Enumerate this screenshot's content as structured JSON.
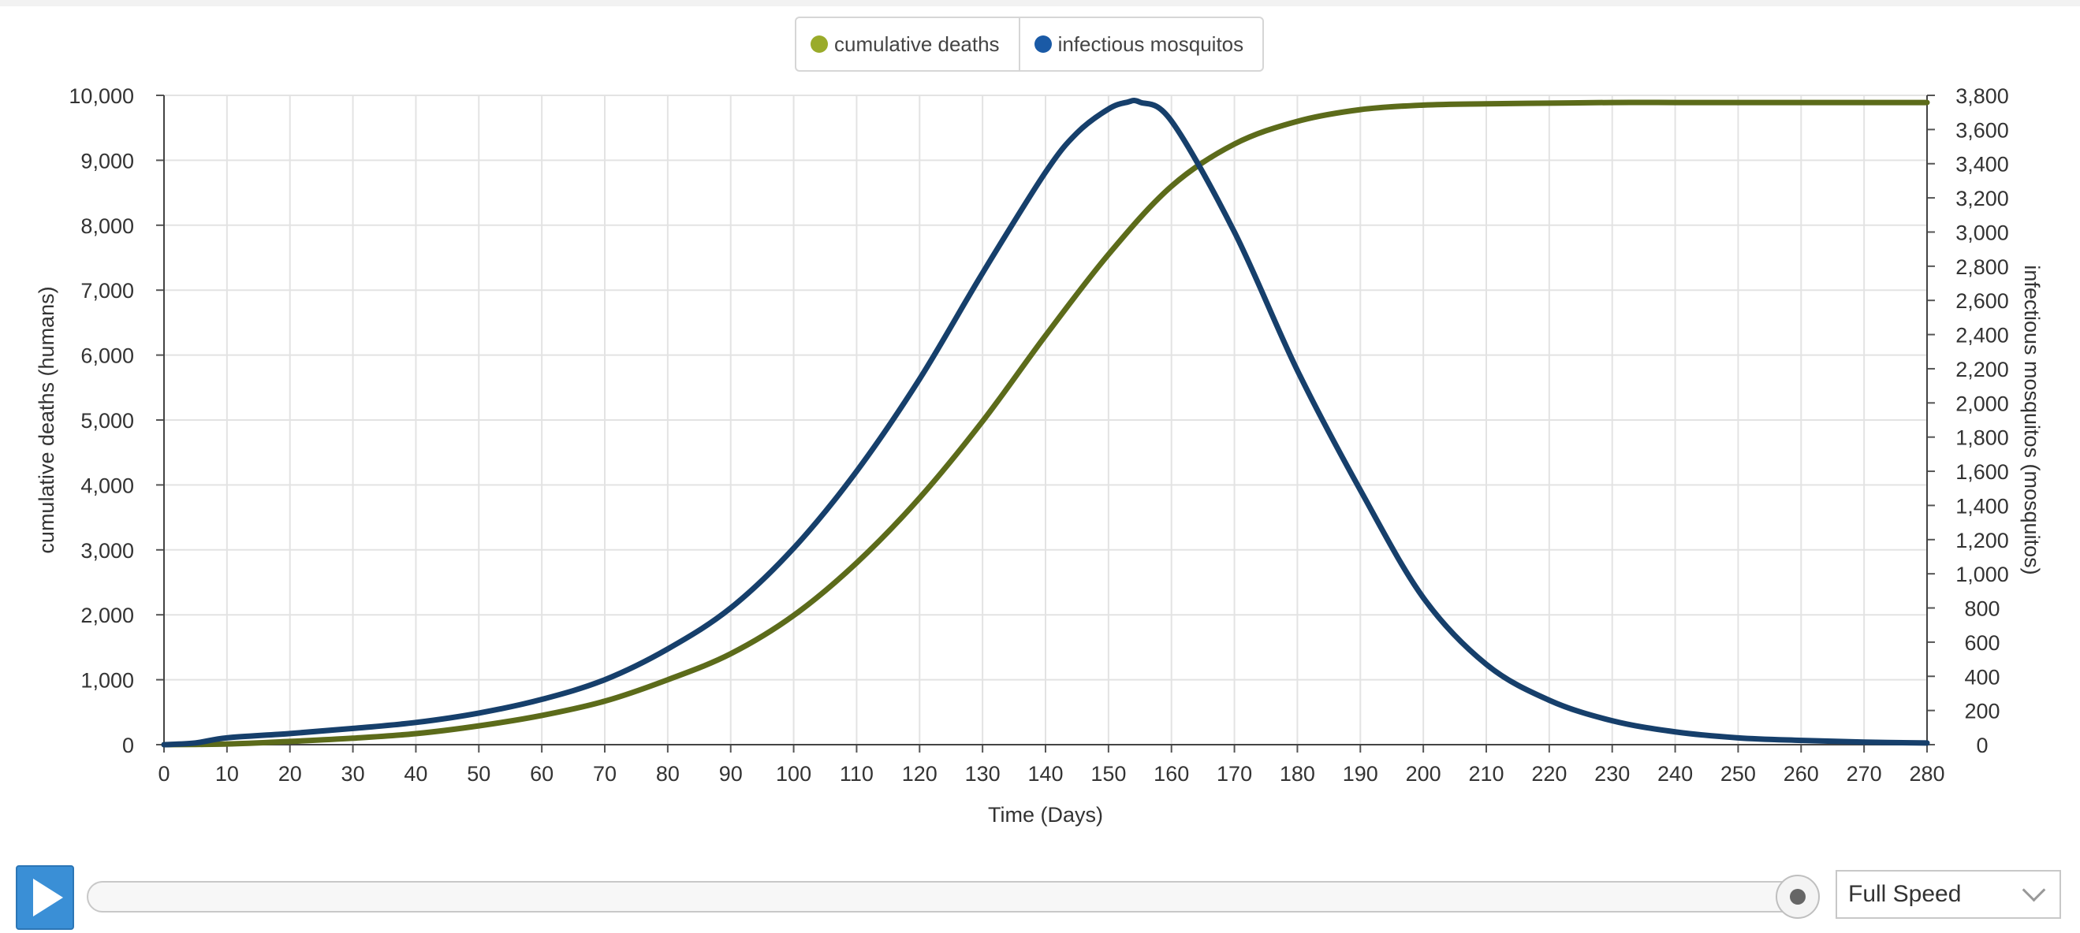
{
  "legend": {
    "items": [
      {
        "label": "cumulative deaths",
        "color": "#9aab2a"
      },
      {
        "label": "infectious mosquitos",
        "color": "#1a5aa6"
      }
    ]
  },
  "controls": {
    "play_icon": "play-icon",
    "speed_value": "Full Speed",
    "slider_position": 1.0
  },
  "chart_data": {
    "type": "line",
    "xlabel": "Time (Days)",
    "ylabel_left": "cumulative deaths (humans)",
    "ylabel_right": "infectious mosquitos (mosquitos)",
    "xlim": [
      0,
      280
    ],
    "ylim_left": [
      0,
      10000
    ],
    "ylim_right": [
      0,
      3800
    ],
    "x_ticks": [
      0,
      10,
      20,
      30,
      40,
      50,
      60,
      70,
      80,
      90,
      100,
      110,
      120,
      130,
      140,
      150,
      160,
      170,
      180,
      190,
      200,
      210,
      220,
      230,
      240,
      250,
      260,
      270,
      280
    ],
    "y_ticks_left": [
      "0",
      "1,000",
      "2,000",
      "3,000",
      "4,000",
      "5,000",
      "6,000",
      "7,000",
      "8,000",
      "9,000",
      "10,000"
    ],
    "y_ticks_right": [
      "0",
      "200",
      "400",
      "600",
      "800",
      "1,000",
      "1,200",
      "1,400",
      "1,600",
      "1,800",
      "2,000",
      "2,200",
      "2,400",
      "2,600",
      "2,800",
      "3,000",
      "3,200",
      "3,400",
      "3,600",
      "3,800"
    ],
    "grid": true,
    "legend_position": "top-center",
    "series": [
      {
        "name": "cumulative deaths",
        "axis": "left",
        "color": "#5c6b1a",
        "x": [
          0,
          10,
          20,
          30,
          40,
          50,
          60,
          70,
          80,
          90,
          100,
          110,
          120,
          130,
          140,
          150,
          160,
          170,
          180,
          190,
          200,
          210,
          220,
          230,
          240,
          250,
          260,
          270,
          280
        ],
        "y": [
          0,
          10,
          50,
          100,
          170,
          290,
          450,
          670,
          1000,
          1400,
          1990,
          2800,
          3800,
          4980,
          6300,
          7550,
          8600,
          9250,
          9600,
          9780,
          9850,
          9870,
          9880,
          9890,
          9890,
          9890,
          9890,
          9890,
          9890
        ]
      },
      {
        "name": "infectious mosquitos",
        "axis": "right",
        "color": "#163f6b",
        "x": [
          0,
          5,
          10,
          20,
          30,
          40,
          50,
          60,
          70,
          80,
          90,
          100,
          110,
          120,
          130,
          140,
          145,
          150,
          153,
          155,
          160,
          170,
          180,
          190,
          200,
          210,
          220,
          230,
          240,
          250,
          260,
          270,
          280
        ],
        "y": [
          0,
          10,
          40,
          65,
          95,
          130,
          185,
          265,
          380,
          560,
          800,
          1150,
          1600,
          2140,
          2760,
          3350,
          3580,
          3720,
          3760,
          3760,
          3650,
          3000,
          2190,
          1490,
          860,
          470,
          260,
          140,
          75,
          40,
          25,
          15,
          10
        ]
      }
    ]
  }
}
